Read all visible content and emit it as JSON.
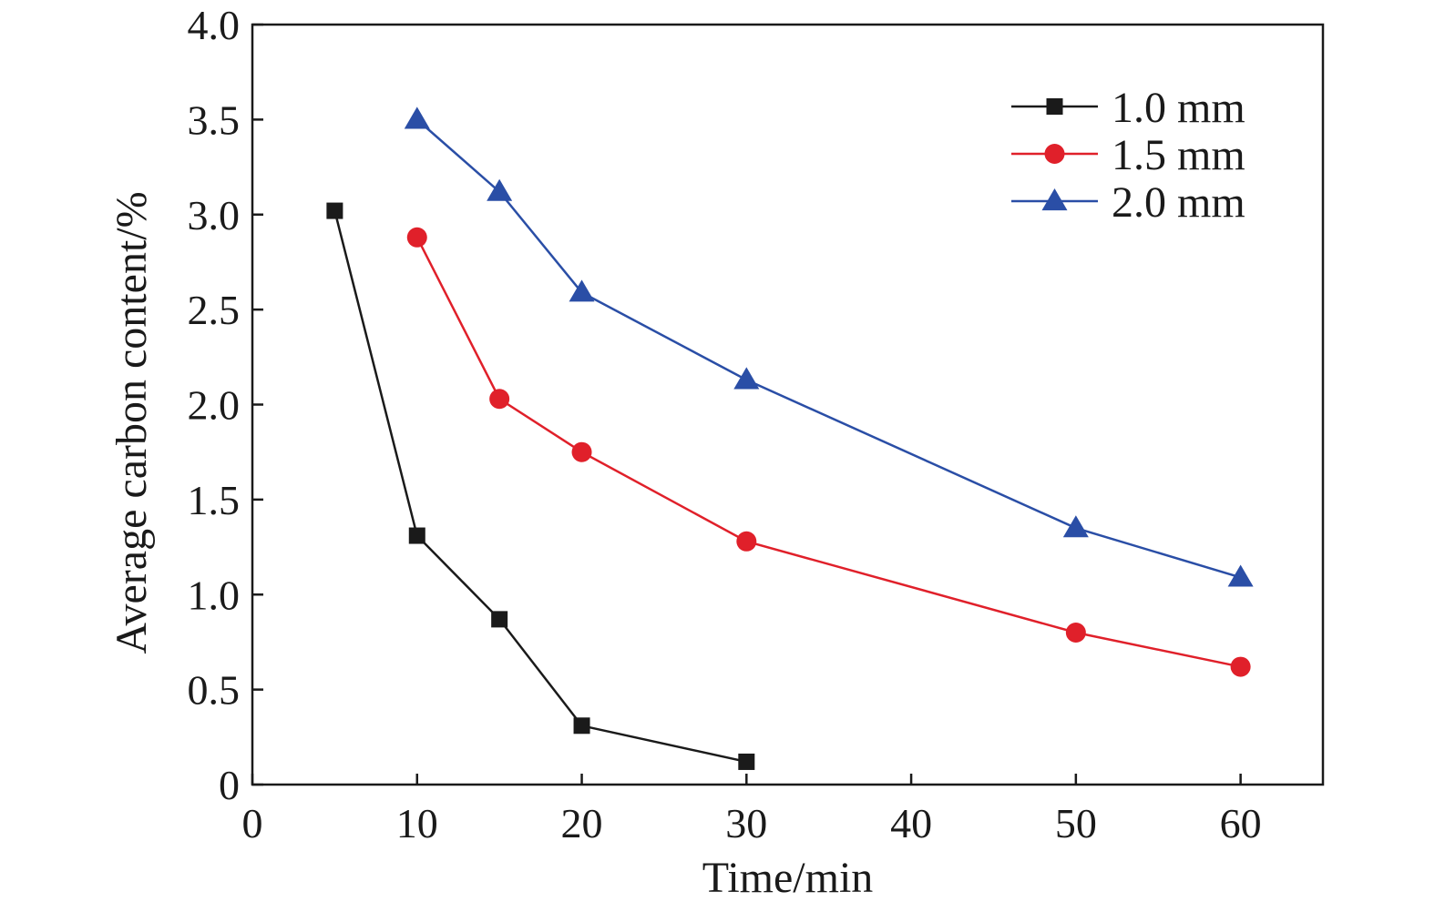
{
  "chart_data": {
    "type": "line",
    "xlabel": "Time/min",
    "ylabel": "Average carbon content/%",
    "xlim": [
      0,
      65
    ],
    "ylim": [
      0,
      4.0
    ],
    "x_ticks": [
      0,
      10,
      20,
      30,
      40,
      50,
      60
    ],
    "x_tick_labels": [
      "0",
      "10",
      "20",
      "30",
      "40",
      "50",
      "60"
    ],
    "y_ticks": [
      0,
      0.5,
      1.0,
      1.5,
      2.0,
      2.5,
      3.0,
      3.5,
      4.0
    ],
    "y_tick_labels": [
      "0",
      "0.5",
      "1.0",
      "1.5",
      "2.0",
      "2.5",
      "3.0",
      "3.5",
      "4.0"
    ],
    "grid": false,
    "legend_position": "top-right",
    "series": [
      {
        "name": "1.0 mm",
        "color": "#1a1a1a",
        "marker": "square",
        "x": [
          5,
          10,
          15,
          20,
          30
        ],
        "y": [
          3.02,
          1.31,
          0.87,
          0.31,
          0.12
        ]
      },
      {
        "name": "1.5 mm",
        "color": "#e0202a",
        "marker": "circle",
        "x": [
          10,
          15,
          20,
          30,
          50,
          60
        ],
        "y": [
          2.88,
          2.03,
          1.75,
          1.28,
          0.8,
          0.62
        ]
      },
      {
        "name": "2.0 mm",
        "color": "#2a4ea6",
        "marker": "triangle",
        "x": [
          10,
          15,
          20,
          30,
          50,
          60
        ],
        "y": [
          3.5,
          3.12,
          2.59,
          2.13,
          1.35,
          1.09
        ]
      }
    ]
  }
}
